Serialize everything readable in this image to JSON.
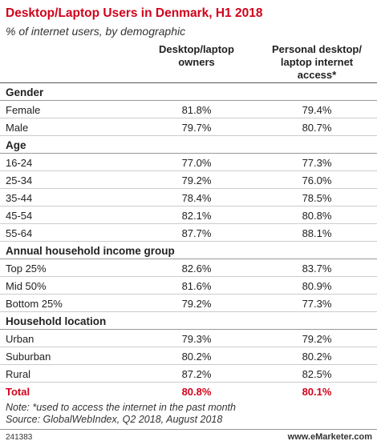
{
  "header": {
    "title": "Desktop/Laptop Users in Denmark, H1 2018",
    "subtitle": "% of internet users, by demographic"
  },
  "table": {
    "columns": [
      [
        "Desktop/laptop",
        "owners"
      ],
      [
        "Personal desktop/",
        "laptop internet",
        "access*"
      ]
    ],
    "sections": [
      {
        "title": "Gender",
        "rows": [
          [
            "Female",
            "81.8%",
            "79.4%"
          ],
          [
            "Male",
            "79.7%",
            "80.7%"
          ]
        ]
      },
      {
        "title": "Age",
        "rows": [
          [
            "16-24",
            "77.0%",
            "77.3%"
          ],
          [
            "25-34",
            "79.2%",
            "76.0%"
          ],
          [
            "35-44",
            "78.4%",
            "78.5%"
          ],
          [
            "45-54",
            "82.1%",
            "80.8%"
          ],
          [
            "55-64",
            "87.7%",
            "88.1%"
          ]
        ]
      },
      {
        "title": "Annual household income group",
        "rows": [
          [
            "Top 25%",
            "82.6%",
            "83.7%"
          ],
          [
            "Mid 50%",
            "81.6%",
            "80.9%"
          ],
          [
            "Bottom 25%",
            "79.2%",
            "77.3%"
          ]
        ]
      },
      {
        "title": "Household location",
        "rows": [
          [
            "Urban",
            "79.3%",
            "79.2%"
          ],
          [
            "Suburban",
            "80.2%",
            "80.2%"
          ],
          [
            "Rural",
            "87.2%",
            "82.5%"
          ]
        ]
      }
    ],
    "total": [
      "Total",
      "80.8%",
      "80.1%"
    ]
  },
  "footer": {
    "note": "Note: *used to access the internet in the past month",
    "source": "Source: GlobalWebIndex, Q2 2018, August 2018",
    "id": "241383",
    "brand": "www.eMarketer.com"
  }
}
